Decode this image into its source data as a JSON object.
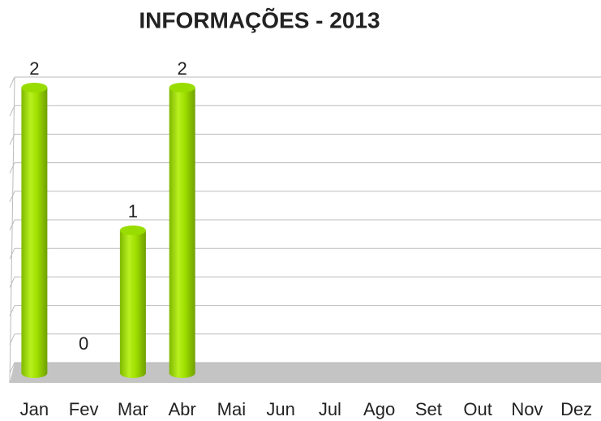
{
  "chart_data": {
    "type": "bar",
    "title": "INFORMAÇÕES - 2013",
    "categories": [
      "Jan",
      "Fev",
      "Mar",
      "Abr",
      "Mai",
      "Jun",
      "Jul",
      "Ago",
      "Set",
      "Out",
      "Nov",
      "Dez"
    ],
    "values": [
      2,
      0,
      1,
      2,
      null,
      null,
      null,
      null,
      null,
      null,
      null,
      null
    ],
    "color": "#99dd00",
    "ylim": [
      0,
      2
    ],
    "yticks": [
      0,
      0.2,
      0.4,
      0.6,
      0.8,
      1,
      1.2,
      1.4,
      1.6,
      1.8,
      2
    ],
    "grid": true
  }
}
